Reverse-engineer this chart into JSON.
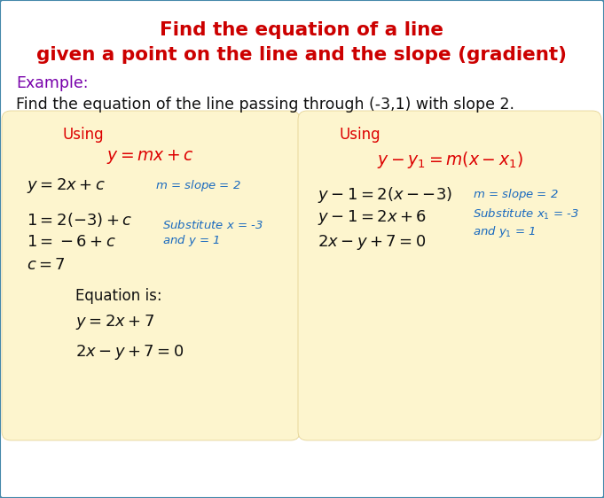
{
  "title_line1": "Find the equation of a line",
  "title_line2": "given a point on the line and the slope (gradient)",
  "title_color": "#cc0000",
  "title_fontsize": 15.5,
  "example_label": "Example:",
  "example_color": "#7700aa",
  "problem_text": "Find the equation of the line passing through (-3,1) with slope 2.",
  "problem_color": "#111111",
  "problem_fontsize": 12.5,
  "box_bg_color": "#fdf5ce",
  "box_edge_color": "#e0cc88",
  "red_color": "#dd0000",
  "blue_color": "#1a6abf",
  "black_color": "#111111",
  "bg_color": "#ffffff",
  "border_color": "#4488aa"
}
